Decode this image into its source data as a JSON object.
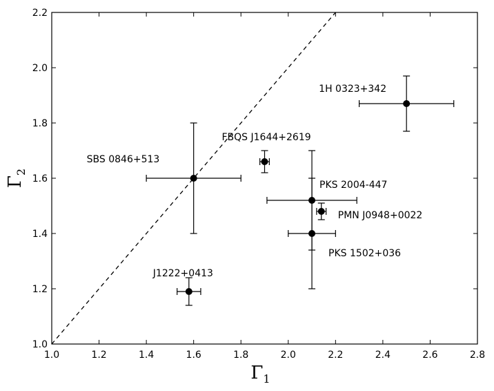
{
  "chart_data": {
    "type": "scatter",
    "xlabel": "Γ",
    "xlabel_sub": "1",
    "ylabel": "Γ",
    "ylabel_sub": "2",
    "xlim": [
      1.0,
      2.8
    ],
    "ylim": [
      1.0,
      2.2
    ],
    "xticks": [
      "1.0",
      "1.2",
      "1.4",
      "1.6",
      "1.8",
      "2.0",
      "2.2",
      "2.4",
      "2.6",
      "2.8"
    ],
    "yticks": [
      "1.0",
      "1.2",
      "1.4",
      "1.6",
      "1.8",
      "2.0",
      "2.2"
    ],
    "grid": false,
    "reference_line": {
      "style": "dashed",
      "slope": 1,
      "intercept": 0
    },
    "points": [
      {
        "name": "1H 0323+342",
        "x": 2.5,
        "y": 1.87,
        "xerr": 0.2,
        "yerr": 0.1
      },
      {
        "name": "FBQS J1644+2619",
        "x": 1.9,
        "y": 1.66,
        "xerr": 0.02,
        "yerr": 0.04
      },
      {
        "name": "SBS 0846+513",
        "x": 1.6,
        "y": 1.6,
        "xerr": 0.2,
        "yerr": 0.2
      },
      {
        "name": "PKS 2004-447",
        "x": 2.1,
        "y": 1.52,
        "xerr": 0.19,
        "yerr": 0.18
      },
      {
        "name": "PMN J0948+0022",
        "x": 2.14,
        "y": 1.48,
        "xerr": 0.02,
        "yerr": 0.03
      },
      {
        "name": "PKS 1502+036",
        "x": 2.1,
        "y": 1.4,
        "xerr": 0.1,
        "yerr": 0.2
      },
      {
        "name": "J1222+0413",
        "x": 1.58,
        "y": 1.19,
        "xerr": 0.05,
        "yerr": 0.05
      }
    ]
  }
}
